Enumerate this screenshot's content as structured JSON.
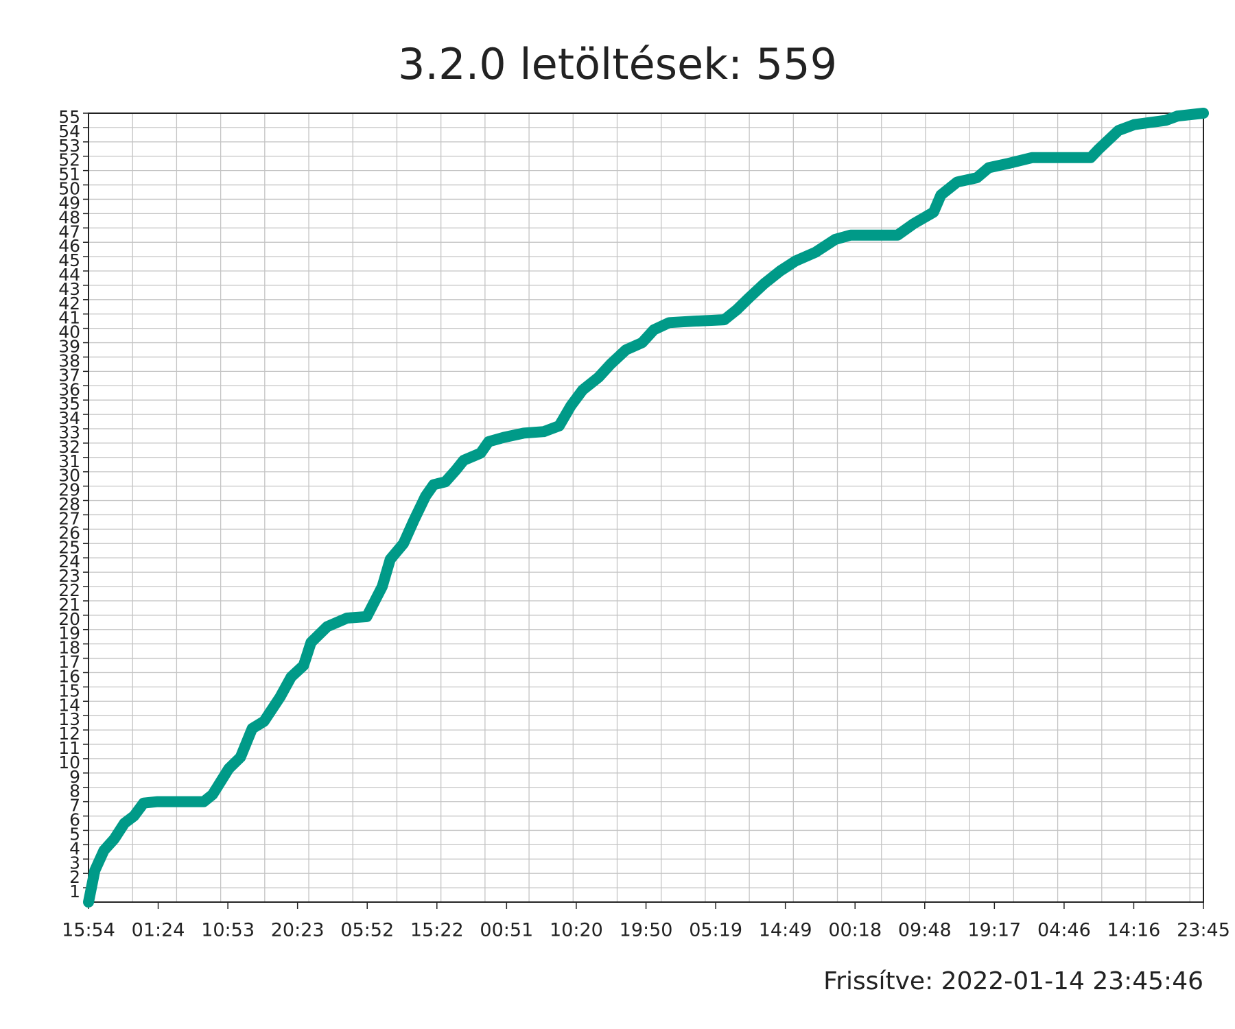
{
  "chart_data": {
    "type": "line",
    "title": "3.2.0 letöltések: 559",
    "footer": "Frissítve: 2022-01-14 23:45:46",
    "color": "#009a88",
    "grid": true,
    "x": [
      0,
      0.86,
      2.1,
      3.5,
      4.9,
      6.2,
      7.5,
      9.4,
      15.7,
      16.9,
      19.1,
      20.7,
      22.3,
      23.9,
      26.1,
      27.6,
      29.3,
      30.3,
      32.5,
      35.2,
      37.9,
      40.0,
      41.1,
      42.9,
      44.3,
      45.9,
      47.0,
      48.6,
      50.0,
      51.1,
      53.4,
      54.5,
      56.6,
      59.3,
      62.0,
      64.1,
      65.7,
      67.3,
      69.5,
      71.1,
      73.2,
      75.4,
      77.0,
      79.1,
      82.4,
      86.6,
      88.3,
      89.9,
      92.0,
      94.2,
      96.3,
      99.0,
      101.7,
      103.8,
      110.2,
      112.4,
      115.1,
      116.1,
      118.3,
      121.0,
      122.6,
      125.3,
      128.5,
      136.5,
      137.6,
      140.3,
      142.4,
      146.7,
      148.3,
      151.85
    ],
    "values": [
      0,
      2.2,
      3.6,
      4.4,
      5.5,
      6.0,
      6.9,
      7.0,
      7.0,
      7.5,
      9.3,
      10.1,
      12.1,
      12.6,
      14.3,
      15.7,
      16.5,
      18.1,
      19.2,
      19.8,
      19.9,
      22.0,
      23.9,
      25.0,
      26.6,
      28.3,
      29.1,
      29.3,
      30.1,
      30.8,
      31.3,
      32.1,
      32.4,
      32.7,
      32.8,
      33.2,
      34.6,
      35.7,
      36.6,
      37.5,
      38.5,
      39.0,
      39.9,
      40.4,
      40.5,
      40.6,
      41.3,
      42.1,
      43.1,
      44.0,
      44.7,
      45.3,
      46.2,
      46.5,
      46.5,
      47.3,
      48.1,
      49.3,
      50.2,
      50.5,
      51.2,
      51.5,
      51.9,
      51.9,
      52.5,
      53.8,
      54.2,
      54.5,
      54.8,
      55.0
    ],
    "xlim": [
      0,
      151.85
    ],
    "xticks": [
      {
        "value": 0,
        "label": "15:54"
      },
      {
        "value": 9.49,
        "label": "01:24"
      },
      {
        "value": 18.98,
        "label": "10:53"
      },
      {
        "value": 28.47,
        "label": "20:23"
      },
      {
        "value": 37.96,
        "label": "05:52"
      },
      {
        "value": 47.45,
        "label": "15:22"
      },
      {
        "value": 56.94,
        "label": "00:51"
      },
      {
        "value": 66.43,
        "label": "10:20"
      },
      {
        "value": 75.93,
        "label": "19:50"
      },
      {
        "value": 85.42,
        "label": "05:19"
      },
      {
        "value": 94.91,
        "label": "14:49"
      },
      {
        "value": 104.4,
        "label": "00:18"
      },
      {
        "value": 113.89,
        "label": "09:48"
      },
      {
        "value": 123.38,
        "label": "19:17"
      },
      {
        "value": 132.87,
        "label": "04:46"
      },
      {
        "value": 142.36,
        "label": "14:16"
      },
      {
        "value": 151.85,
        "label": "23:45"
      }
    ],
    "xminor": [
      6,
      12,
      18,
      24,
      30,
      36,
      42,
      48,
      54,
      60,
      66,
      72,
      78,
      84,
      90,
      96,
      102,
      108,
      114,
      120,
      126,
      132,
      138,
      144,
      150
    ],
    "ylim": [
      0,
      55
    ],
    "yticks": [
      1,
      2,
      3,
      4,
      5,
      6,
      7,
      8,
      9,
      10,
      11,
      12,
      13,
      14,
      15,
      16,
      17,
      18,
      19,
      20,
      21,
      22,
      23,
      24,
      25,
      26,
      27,
      28,
      29,
      30,
      31,
      32,
      33,
      34,
      35,
      36,
      37,
      38,
      39,
      40,
      41,
      42,
      43,
      44,
      45,
      46,
      47,
      48,
      49,
      50,
      51,
      52,
      53,
      54,
      55
    ]
  }
}
